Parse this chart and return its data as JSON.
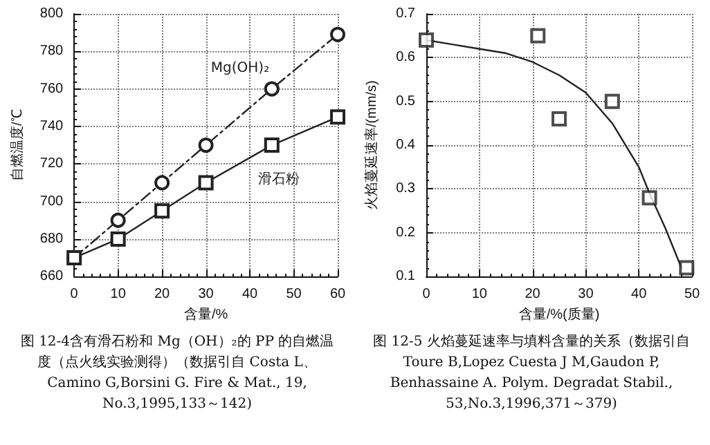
{
  "chart_data": [
    {
      "type": "line",
      "xlabel": "含量/%",
      "ylabel": "自燃温度/℃",
      "x": [
        0,
        10,
        20,
        30,
        45,
        60
      ],
      "xlim": [
        0,
        60
      ],
      "xticks": [
        0,
        10,
        20,
        30,
        40,
        50,
        60
      ],
      "ylim": [
        660,
        800
      ],
      "yticks": [
        660,
        680,
        700,
        720,
        740,
        760,
        780,
        800
      ],
      "grid": true,
      "legend": false,
      "series": [
        {
          "name": "Mg(OH)₂",
          "color": "#222222",
          "values": [
            670,
            690,
            710,
            730,
            760,
            789
          ],
          "marker": "circle",
          "line_style": "dashed"
        },
        {
          "name": "滑石粉",
          "color": "#222222",
          "values": [
            670,
            680,
            695,
            710,
            730,
            745
          ],
          "marker": "square",
          "line_style": "solid"
        }
      ],
      "annotations": [
        "图 12-4含有滑石粉和 Mg（OH）₂的 PP 的自燃温度（点火线实验测得）（数据引自 Costa L、Camino G,Borsini G. Fire & Mat., 19, No.3,1995,133～142)"
      ]
    },
    {
      "type": "scatter",
      "xlabel": "含量/%(质量)",
      "ylabel": "火焰蔓延速率/(mm/s)",
      "xlim": [
        0,
        50
      ],
      "xticks": [
        0,
        10,
        20,
        30,
        40,
        50
      ],
      "ylim": [
        0.1,
        0.7
      ],
      "yticks": [
        0.1,
        0.2,
        0.3,
        0.4,
        0.5,
        0.6,
        0.7
      ],
      "grid": true,
      "legend": false,
      "series": [
        {
          "color": "#222222",
          "x": [
            0,
            21,
            25,
            35,
            42,
            49
          ],
          "values": [
            0.64,
            0.65,
            0.46,
            0.5,
            0.28,
            0.12
          ],
          "marker": "square"
        },
        {
          "type": "line",
          "color": "#222222",
          "x": [
            0,
            5,
            10,
            15,
            20,
            25,
            30,
            35,
            40,
            42,
            45,
            48
          ],
          "values": [
            0.64,
            0.63,
            0.62,
            0.61,
            0.59,
            0.56,
            0.52,
            0.45,
            0.35,
            0.29,
            0.21,
            0.12
          ],
          "marker": "none",
          "line_style": "solid"
        }
      ],
      "annotations": [
        "图 12-5 火焰蔓延速率与填料含量的关系（数据引自 Toure B,Lopez Cuesta J M,Gaudon P, Benhassaine A. Polym. Degradat Stabil., 53,No.3,1996,371～379)"
      ]
    }
  ]
}
